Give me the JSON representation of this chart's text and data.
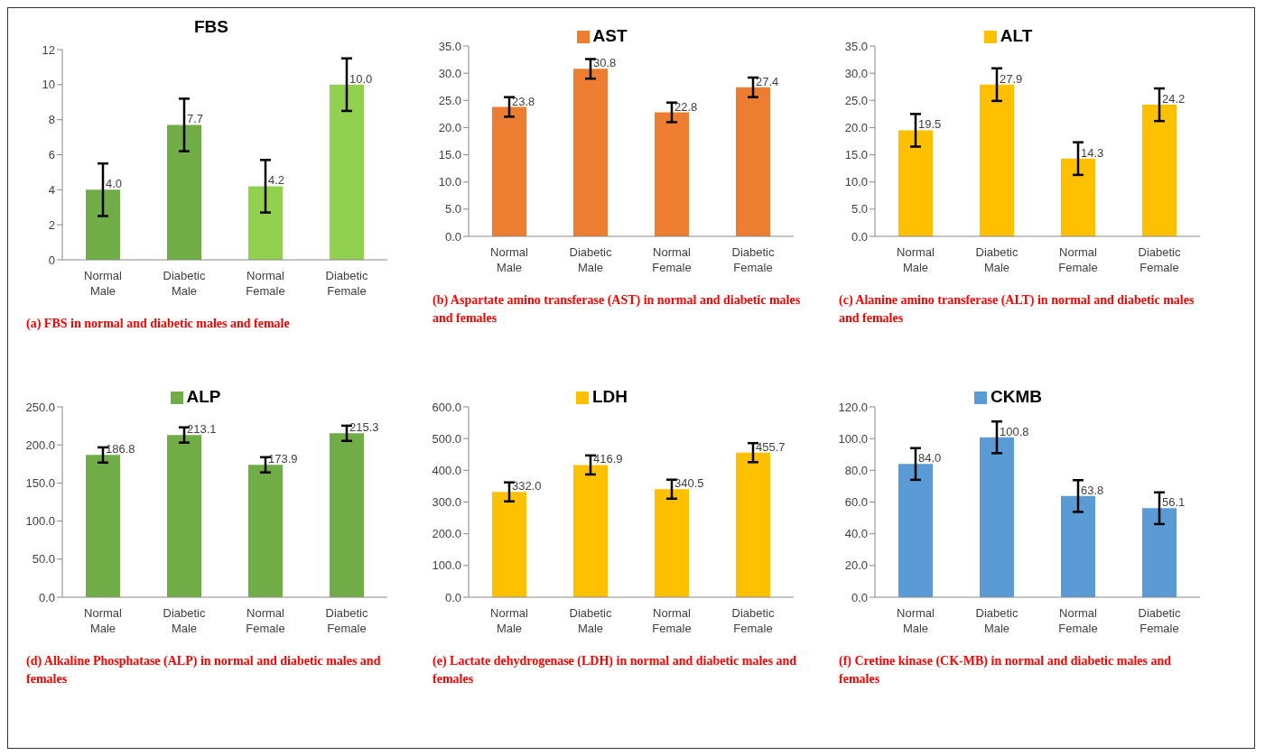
{
  "chart_data": [
    {
      "type": "bar",
      "title": "FBS",
      "categories": [
        "Normal Male",
        "Diabetic Male",
        "Normal Female",
        "Diabetic Female"
      ],
      "series": [
        {
          "colors": [
            "#70ad47",
            "#70ad47",
            "#92d050",
            "#92d050"
          ],
          "values": [
            4.0,
            7.7,
            4.2,
            10.0
          ],
          "errors": [
            1.5,
            1.5,
            1.5,
            1.5
          ],
          "value_labels": [
            "4.0",
            "7.7",
            "4.2",
            "10.0"
          ]
        }
      ],
      "ylim": [
        0,
        12
      ],
      "yticks": [
        0,
        2,
        4,
        6,
        8,
        10,
        12
      ],
      "grid": false,
      "legend": false,
      "annotations": [
        "(a) FBS in normal and diabetic  males and female"
      ]
    },
    {
      "type": "bar",
      "categories": [
        "Normal Male",
        "Diabetic Male",
        "Normal Female",
        "Diabetic Female"
      ],
      "series": [
        {
          "name": "AST",
          "color": "#ed7d31",
          "values": [
            23.8,
            30.8,
            22.8,
            27.4
          ],
          "errors": [
            1.8,
            1.8,
            1.8,
            1.8
          ],
          "value_labels": [
            "23.8",
            "30.8",
            "22.8",
            "27.4"
          ]
        }
      ],
      "ylim": [
        0,
        35
      ],
      "yticks": [
        {
          "value": 0,
          "label": "0.0"
        },
        {
          "value": 5,
          "label": "5.0"
        },
        {
          "value": 10,
          "label": "10.0"
        },
        {
          "value": 15,
          "label": "15.0"
        },
        {
          "value": 20,
          "label": "20.0"
        },
        {
          "value": 25,
          "label": "25.0"
        },
        {
          "value": 30,
          "label": "30.0"
        },
        {
          "value": 35,
          "label": "35.0"
        }
      ],
      "grid": false,
      "legend": "top",
      "annotations": [
        "(b) Aspartate amino transferase (AST) in normal and diabetic males and females"
      ]
    },
    {
      "type": "bar",
      "categories": [
        "Normal Male",
        "Diabetic Male",
        "Normal Female",
        "Diabetic Female"
      ],
      "series": [
        {
          "name": "ALT",
          "color": "#ffc000",
          "values": [
            19.5,
            27.9,
            14.3,
            24.2
          ],
          "errors": [
            3,
            3,
            3,
            3
          ],
          "value_labels": [
            "19.5",
            "27.9",
            "14.3",
            "24.2"
          ]
        }
      ],
      "ylim": [
        0,
        35
      ],
      "yticks": [
        {
          "value": 0,
          "label": "0.0"
        },
        {
          "value": 5,
          "label": "5.0"
        },
        {
          "value": 10,
          "label": "10.0"
        },
        {
          "value": 15,
          "label": "15.0"
        },
        {
          "value": 20,
          "label": "20.0"
        },
        {
          "value": 25,
          "label": "25.0"
        },
        {
          "value": 30,
          "label": "30.0"
        },
        {
          "value": 35,
          "label": "35.0"
        }
      ],
      "grid": false,
      "legend": "top",
      "annotations": [
        "(c) Alanine amino transferase (ALT)  in normal and diabetic males and females"
      ]
    },
    {
      "type": "bar",
      "categories": [
        "Normal Male",
        "Diabetic Male",
        "Normal Female",
        "Diabetic Female"
      ],
      "series": [
        {
          "name": "ALP",
          "color": "#70ad47",
          "values": [
            186.8,
            213.1,
            173.9,
            215.3
          ],
          "errors": [
            10,
            10,
            10,
            10
          ],
          "value_labels": [
            "186.8",
            "213.1",
            "173.9",
            "215.3"
          ]
        }
      ],
      "ylim": [
        0,
        250
      ],
      "yticks": [
        {
          "value": 0,
          "label": "0.0"
        },
        {
          "value": 50,
          "label": "50.0"
        },
        {
          "value": 100,
          "label": "100.0"
        },
        {
          "value": 150,
          "label": "150.0"
        },
        {
          "value": 200,
          "label": "200.0"
        },
        {
          "value": 250,
          "label": "250.0"
        }
      ],
      "grid": false,
      "legend": "top",
      "annotations": [
        "(d) Alkaline Phosphatase (ALP) in normal and diabetic males and females"
      ]
    },
    {
      "type": "bar",
      "categories": [
        "Normal Male",
        "Diabetic Male",
        "Normal Female",
        "Diabetic Female"
      ],
      "series": [
        {
          "name": "LDH",
          "color": "#ffc000",
          "values": [
            332.0,
            416.9,
            340.5,
            455.7
          ],
          "errors": [
            30,
            30,
            30,
            30
          ],
          "value_labels": [
            "332.0",
            "416.9",
            "340.5",
            "455.7"
          ]
        }
      ],
      "ylim": [
        0,
        600
      ],
      "yticks": [
        {
          "value": 0,
          "label": "0.0"
        },
        {
          "value": 100,
          "label": "100.0"
        },
        {
          "value": 200,
          "label": "200.0"
        },
        {
          "value": 300,
          "label": "300.0"
        },
        {
          "value": 400,
          "label": "400.0"
        },
        {
          "value": 500,
          "label": "500.0"
        },
        {
          "value": 600,
          "label": "600.0"
        }
      ],
      "grid": false,
      "legend": "top",
      "annotations": [
        "(e) Lactate dehydrogenase (LDH) in normal and diabetic males and females"
      ]
    },
    {
      "type": "bar",
      "categories": [
        "Normal Male",
        "Diabetic Male",
        "Normal Female",
        "Diabetic Female"
      ],
      "series": [
        {
          "name": "CKMB",
          "color": "#5b9bd5",
          "values": [
            84.0,
            100.8,
            63.8,
            56.1
          ],
          "errors": [
            10,
            10,
            10,
            10
          ],
          "value_labels": [
            "84.0",
            "100.8",
            "63.8",
            "56.1"
          ]
        }
      ],
      "ylim": [
        0,
        120
      ],
      "yticks": [
        {
          "value": 0,
          "label": "0.0"
        },
        {
          "value": 20,
          "label": "20.0"
        },
        {
          "value": 40,
          "label": "40.0"
        },
        {
          "value": 60,
          "label": "60.0"
        },
        {
          "value": 80,
          "label": "80.0"
        },
        {
          "value": 100,
          "label": "100.0"
        },
        {
          "value": 120,
          "label": "120.0"
        }
      ],
      "grid": false,
      "legend": "top",
      "annotations": [
        "(f) Cretine kinase (CK-MB)  in normal and diabetic males and females"
      ]
    }
  ]
}
